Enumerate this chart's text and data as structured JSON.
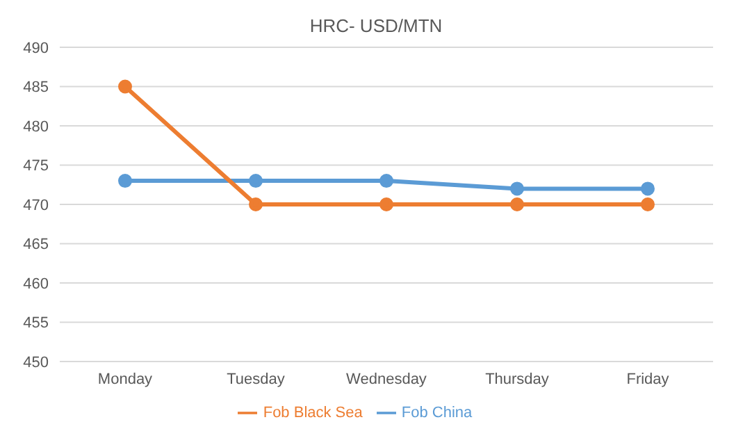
{
  "chart_data": {
    "type": "line",
    "title": "HRC- USD/MTN",
    "categories": [
      "Monday",
      "Tuesday",
      "Wednesday",
      "Thursday",
      "Friday"
    ],
    "series": [
      {
        "name": "Fob China",
        "color": "#5b9bd5",
        "values": [
          473,
          473,
          473,
          472,
          472
        ]
      },
      {
        "name": "Fob Black Sea",
        "color": "#ed7d31",
        "values": [
          485,
          470,
          470,
          470,
          470
        ]
      }
    ],
    "ylim": [
      450,
      490
    ],
    "yticks": [
      450,
      455,
      460,
      465,
      470,
      475,
      480,
      485,
      490
    ],
    "grid": "y",
    "legend": "bottom",
    "marker": "circle",
    "line_style": "solid"
  }
}
